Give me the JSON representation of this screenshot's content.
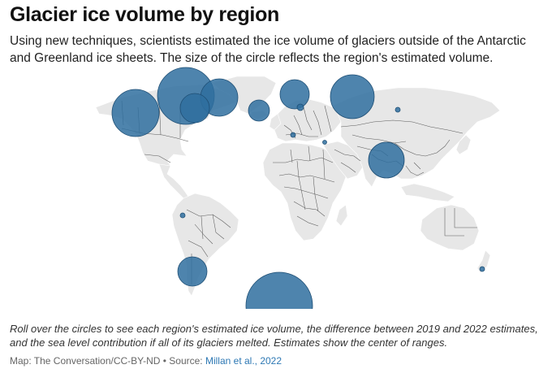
{
  "header": {
    "title": "Glacier ice volume by region",
    "subtitle": "Using new techniques, scientists estimated the ice volume of glaciers outside of the Antarctic and Greenland ice sheets. The size of the circle reflects the region's estimated volume."
  },
  "footer": {
    "note": "Roll over the circles to see each region's estimated ice volume, the difference between 2019 and 2022 estimates, and the sea level contribution if all of its glaciers melted. Estimates show the center of ranges.",
    "credit_prefix": "Map: The Conversation/CC-BY-ND • Source: ",
    "source_link": "Millan et al., 2022"
  },
  "map": {
    "bubble_color": "#2f6f9f",
    "land_color": "#e7e7e7",
    "border_color": "#5b5b5b",
    "regions_count": 19
  }
}
